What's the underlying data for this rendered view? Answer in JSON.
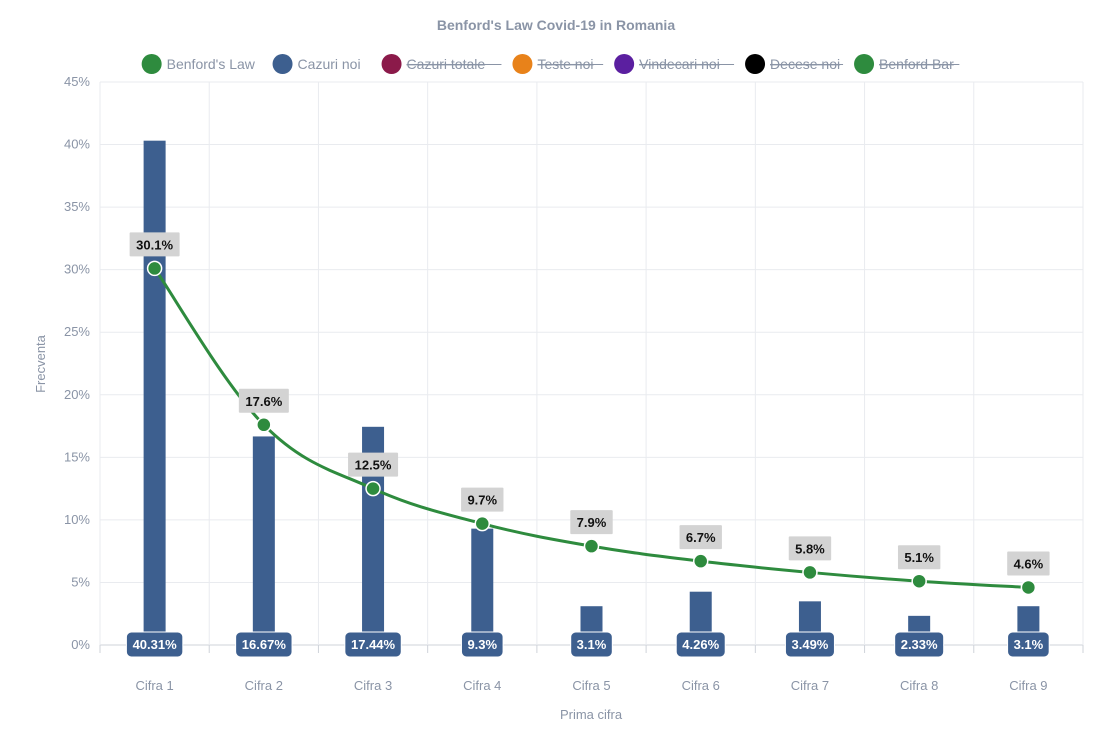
{
  "chart_data": {
    "type": "bar",
    "title": "Benford's Law Covid-19 in Romania",
    "xlabel": "Prima cifra",
    "ylabel": "Frecventa",
    "categories": [
      "Cifra 1",
      "Cifra 2",
      "Cifra 3",
      "Cifra 4",
      "Cifra 5",
      "Cifra 6",
      "Cifra 7",
      "Cifra 8",
      "Cifra 9"
    ],
    "ylim": [
      0,
      45
    ],
    "yticks": [
      0,
      5,
      10,
      15,
      20,
      25,
      30,
      35,
      40,
      45
    ],
    "ytick_suffix": "%",
    "grid": true,
    "legend_position": "top-center",
    "legend": [
      {
        "name": "Benford's Law",
        "color": "#2e8b3e",
        "hidden": false
      },
      {
        "name": "Cazuri noi",
        "color": "#3d5f8f",
        "hidden": false
      },
      {
        "name": "Cazuri totale",
        "color": "#8b1a4a",
        "hidden": true
      },
      {
        "name": "Teste noi",
        "color": "#e8821a",
        "hidden": true
      },
      {
        "name": "Vindecari noi",
        "color": "#5b1fa0",
        "hidden": true
      },
      {
        "name": "Decese noi",
        "color": "#000000",
        "hidden": true
      },
      {
        "name": "Benford Bar",
        "color": "#2e8b3e",
        "hidden": true
      }
    ],
    "series": [
      {
        "name": "Cazuri noi",
        "kind": "bar",
        "color": "#3d5f8f",
        "values": [
          40.31,
          16.67,
          17.44,
          9.3,
          3.1,
          4.26,
          3.49,
          2.33,
          3.1
        ],
        "labels": [
          "40.31%",
          "16.67%",
          "17.44%",
          "9.3%",
          "3.1%",
          "4.26%",
          "3.49%",
          "2.33%",
          "3.1%"
        ]
      },
      {
        "name": "Benford's Law",
        "kind": "line",
        "color": "#2e8b3e",
        "values": [
          30.1,
          17.6,
          12.5,
          9.7,
          7.9,
          6.7,
          5.8,
          5.1,
          4.6
        ],
        "labels": [
          "30.1%",
          "17.6%",
          "12.5%",
          "9.7%",
          "7.9%",
          "6.7%",
          "5.8%",
          "5.1%",
          "4.6%"
        ]
      }
    ]
  }
}
